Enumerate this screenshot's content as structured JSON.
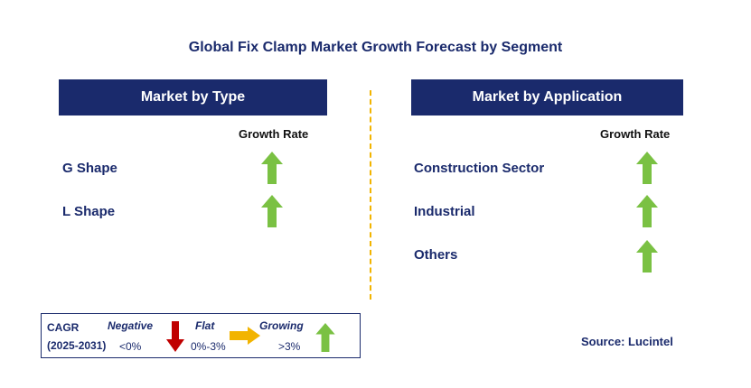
{
  "title": "Global Fix Clamp Market Growth Forecast by Segment",
  "left_panel": {
    "header": "Market by Type",
    "growth_rate_label": "Growth Rate",
    "rows": [
      {
        "label": "G Shape",
        "trend": "growing"
      },
      {
        "label": "L Shape",
        "trend": "growing"
      }
    ]
  },
  "right_panel": {
    "header": "Market by Application",
    "growth_rate_label": "Growth Rate",
    "rows": [
      {
        "label": "Construction Sector",
        "trend": "growing"
      },
      {
        "label": "Industrial",
        "trend": "growing"
      },
      {
        "label": "Others",
        "trend": "growing"
      }
    ]
  },
  "legend": {
    "cagr_label": "CAGR",
    "period": "(2025-2031)",
    "negative_label": "Negative",
    "negative_range": "<0%",
    "flat_label": "Flat",
    "flat_range": "0%-3%",
    "growing_label": "Growing",
    "growing_range": ">3%"
  },
  "source": "Source: Lucintel",
  "colors": {
    "header_bg": "#1a2a6c",
    "growing": "#7ac143",
    "negative": "#c00000",
    "flat": "#f2b400",
    "divider": "#f2b400"
  }
}
